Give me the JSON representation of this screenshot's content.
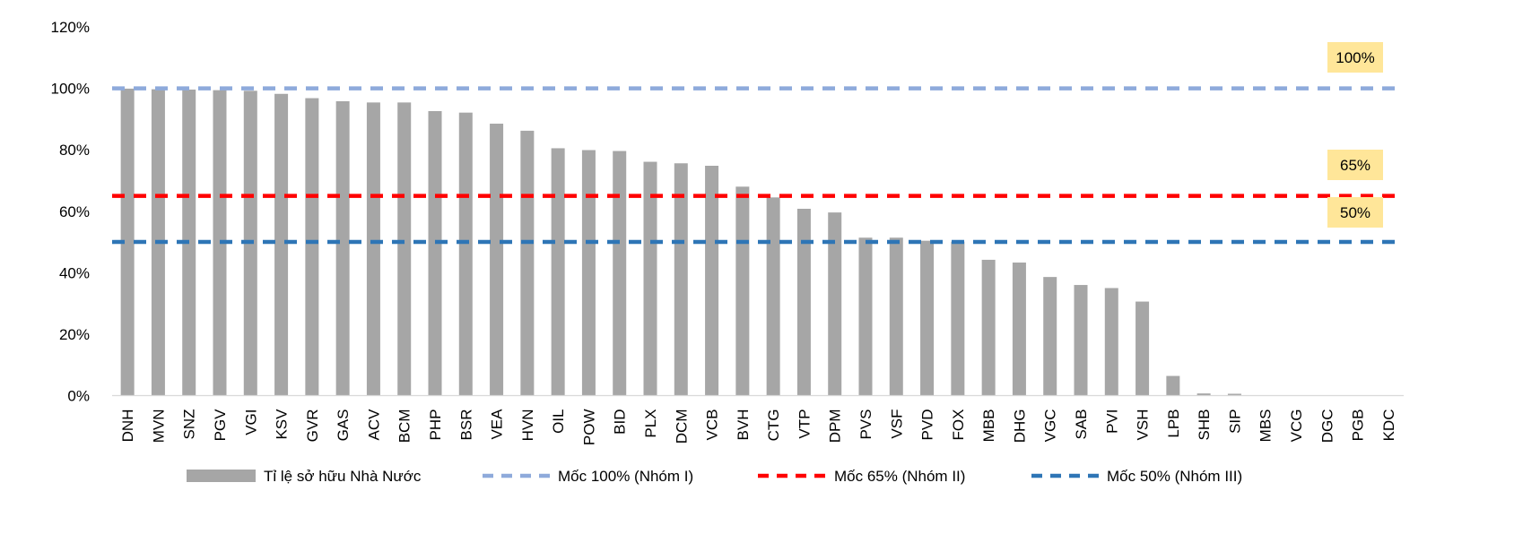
{
  "chart_data": {
    "type": "bar",
    "title": "",
    "xlabel": "",
    "ylabel": "",
    "ylim": [
      0,
      120
    ],
    "yticks": [
      0,
      20,
      40,
      60,
      80,
      100,
      120
    ],
    "ytick_labels": [
      "0%",
      "20%",
      "40%",
      "60%",
      "80%",
      "100%",
      "120%"
    ],
    "grid": false,
    "legend_position": "bottom",
    "categories": [
      "DNH",
      "MVN",
      "SNZ",
      "PGV",
      "VGI",
      "KSV",
      "GVR",
      "GAS",
      "ACV",
      "BCM",
      "PHP",
      "BSR",
      "VEA",
      "HVN",
      "OIL",
      "POW",
      "BID",
      "PLX",
      "DCM",
      "VCB",
      "BVH",
      "CTG",
      "VTP",
      "DPM",
      "PVS",
      "VSF",
      "PVD",
      "FOX",
      "MBB",
      "DHG",
      "VGC",
      "SAB",
      "PVI",
      "VSH",
      "LPB",
      "SHB",
      "SIP",
      "MBS",
      "VCG",
      "DGC",
      "PGB",
      "KDC"
    ],
    "series": [
      {
        "name": "Tỉ lệ sở hữu Nhà Nước",
        "color": "#a6a6a6",
        "values": [
          99.9,
          99.7,
          99.6,
          99.4,
          99.2,
          98.2,
          96.8,
          95.8,
          95.4,
          95.4,
          92.6,
          92.1,
          88.5,
          86.2,
          80.5,
          79.9,
          79.6,
          76.1,
          75.6,
          74.8,
          68.0,
          64.5,
          60.8,
          59.6,
          51.4,
          51.4,
          50.4,
          50.1,
          44.2,
          43.3,
          38.6,
          36.0,
          35.0,
          30.6,
          6.4,
          0.7,
          0.6,
          0,
          0,
          0,
          0,
          0
        ]
      }
    ],
    "reference_lines": [
      {
        "name": "Mốc 100% (Nhóm I)",
        "value": 100,
        "color": "#8eaadb",
        "label": "100%"
      },
      {
        "name": "Mốc 65% (Nhóm II)",
        "value": 65,
        "color": "#ff0000",
        "label": "65%"
      },
      {
        "name": "Mốc 50% (Nhóm III)",
        "value": 50,
        "color": "#2e75b6",
        "label": "50%"
      }
    ],
    "annotation_box_color": "#ffe699"
  }
}
